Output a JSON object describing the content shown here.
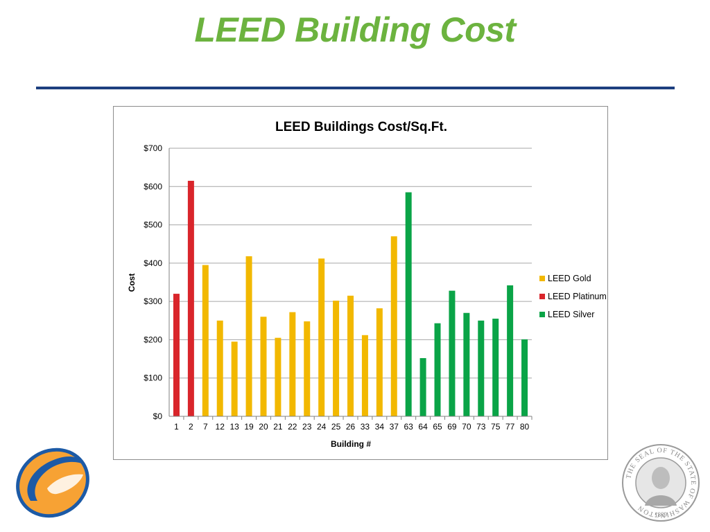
{
  "slide": {
    "title": "LEED Building Cost"
  },
  "colors": {
    "title": "#6cb33f",
    "rule": "#1d3f7f",
    "gold": "#f2b800",
    "platinum": "#d9252b",
    "silver": "#0aa447"
  },
  "seal": {
    "text_top": "THE SEAL OF THE STATE OF WASHINGTON",
    "year": "1889"
  },
  "chart_data": {
    "type": "bar",
    "title": "LEED Buildings Cost/Sq.Ft.",
    "xlabel": "Building #",
    "ylabel": "Cost",
    "ylim": [
      0,
      700
    ],
    "yticks": [
      "$0",
      "$100",
      "$200",
      "$300",
      "$400",
      "$500",
      "$600",
      "$700"
    ],
    "grid": true,
    "legend_position": "right",
    "legend": [
      {
        "name": "LEED Gold",
        "key": "gold"
      },
      {
        "name": "LEED Platinum",
        "key": "platinum"
      },
      {
        "name": "LEED Silver",
        "key": "silver"
      }
    ],
    "categories": [
      "1",
      "2",
      "7",
      "12",
      "13",
      "19",
      "20",
      "21",
      "22",
      "23",
      "24",
      "25",
      "26",
      "33",
      "34",
      "37",
      "63",
      "64",
      "65",
      "69",
      "70",
      "73",
      "75",
      "77",
      "80"
    ],
    "values": [
      320,
      615,
      395,
      250,
      195,
      418,
      260,
      205,
      272,
      248,
      412,
      302,
      315,
      212,
      282,
      470,
      585,
      152,
      243,
      328,
      270,
      250,
      255,
      342,
      201
    ],
    "series_of_bar": [
      "platinum",
      "platinum",
      "gold",
      "gold",
      "gold",
      "gold",
      "gold",
      "gold",
      "gold",
      "gold",
      "gold",
      "gold",
      "gold",
      "gold",
      "gold",
      "gold",
      "silver",
      "silver",
      "silver",
      "silver",
      "silver",
      "silver",
      "silver",
      "silver",
      "silver"
    ]
  }
}
